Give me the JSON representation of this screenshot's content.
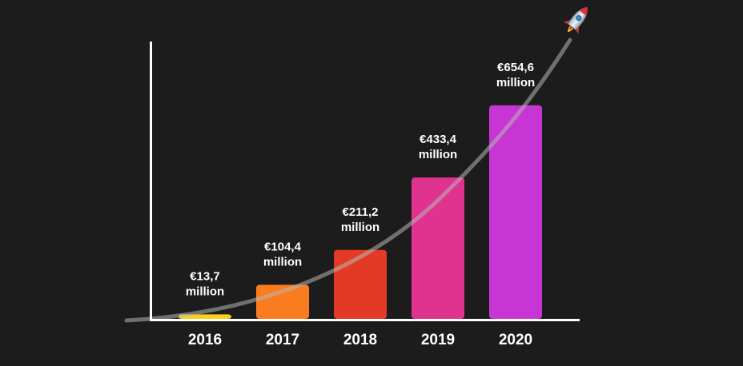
{
  "chart_data": {
    "type": "bar",
    "categories": [
      "2016",
      "2017",
      "2018",
      "2019",
      "2020"
    ],
    "values": [
      13.7,
      104.4,
      211.2,
      433.4,
      654.6
    ],
    "value_labels": [
      [
        "€13,7",
        "million"
      ],
      [
        "€104,4",
        "million"
      ],
      [
        "€211,2",
        "million"
      ],
      [
        "€433,4",
        "million"
      ],
      [
        "€654,6",
        "million"
      ]
    ],
    "colors": [
      "#f9cf1c",
      "#fb7b1f",
      "#e33a25",
      "#e0338f",
      "#c735d5"
    ],
    "title": "",
    "xlabel": "",
    "ylabel": "",
    "ylim": [
      0,
      850
    ],
    "grid": false,
    "legend": "none",
    "axis_color": "#ffffff",
    "background": "#1c1c1c",
    "trend_line": true,
    "decoration_icon": "rocket-icon"
  }
}
